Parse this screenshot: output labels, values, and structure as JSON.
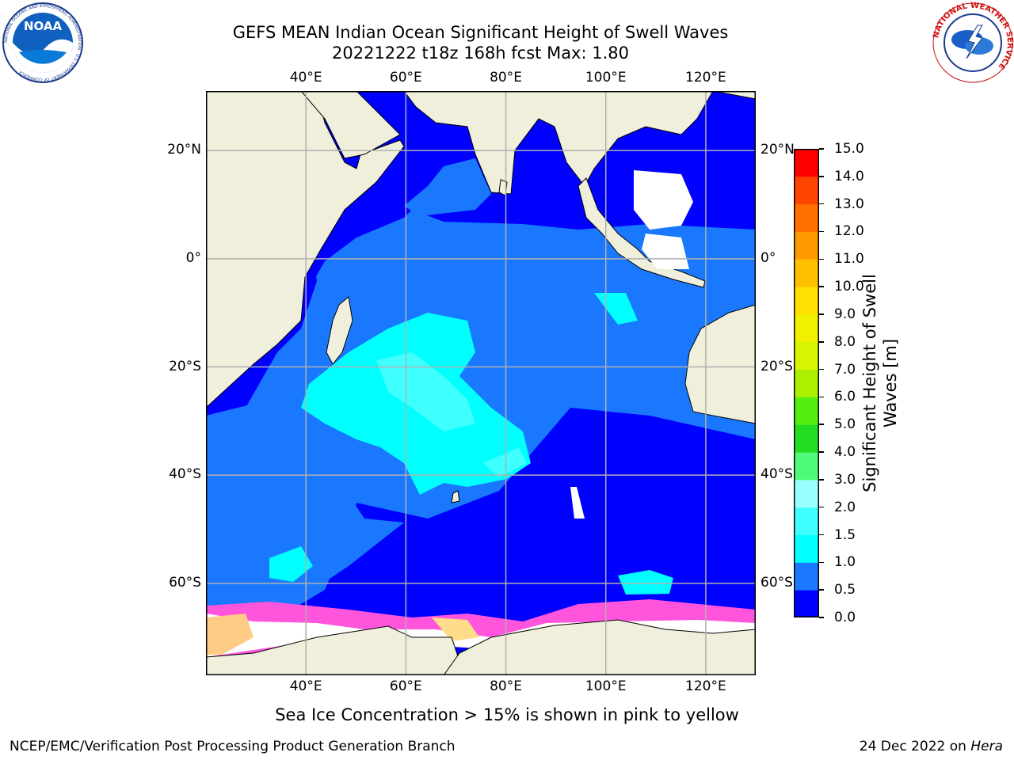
{
  "header": {
    "title": "GEFS MEAN Indian Ocean Significant Height of Swell Waves",
    "subtitle": "20221222 t18z 168h fcst   Max: 1.80"
  },
  "logos": {
    "left": "NOAA",
    "left_ring": "NATIONAL OCEANIC AND ATMOSPHERIC ADMINISTRATION · U.S. DEPARTMENT OF COMMERCE",
    "right_ring": "NATIONAL WEATHER SERVICE"
  },
  "map": {
    "lon_labels": [
      "40°E",
      "60°E",
      "80°E",
      "100°E",
      "120°E"
    ],
    "lat_labels": [
      "20°N",
      "0°",
      "20°S",
      "40°S",
      "60°S"
    ],
    "lon_range": [
      20,
      130
    ],
    "lat_range": [
      -77,
      31
    ]
  },
  "colorbar": {
    "label_line1": "Significant Height of Swell",
    "label_line2": "Waves [m]",
    "ticks": [
      "0.0",
      "0.5",
      "1.0",
      "1.5",
      "2.0",
      "3.0",
      "4.0",
      "5.0",
      "6.0",
      "7.0",
      "8.0",
      "9.0",
      "10.0",
      "11.0",
      "12.0",
      "13.0",
      "14.0",
      "15.0"
    ],
    "colors": [
      "#0000ff",
      "#1a78ff",
      "#00ffff",
      "#40ffff",
      "#99ffff",
      "#4ffa78",
      "#22dd22",
      "#55ee11",
      "#aaf000",
      "#d6f500",
      "#f0f000",
      "#ffe000",
      "#ffc000",
      "#ff9a00",
      "#ff7000",
      "#ff4400",
      "#ff0000"
    ]
  },
  "note": "Sea Ice Concentration > 15% is shown in pink to yellow",
  "footer": {
    "left": "NCEP/EMC/Verification Post Processing Product Generation Branch",
    "right_prefix": "24 Dec 2022 on ",
    "right_machine": "Hera"
  }
}
